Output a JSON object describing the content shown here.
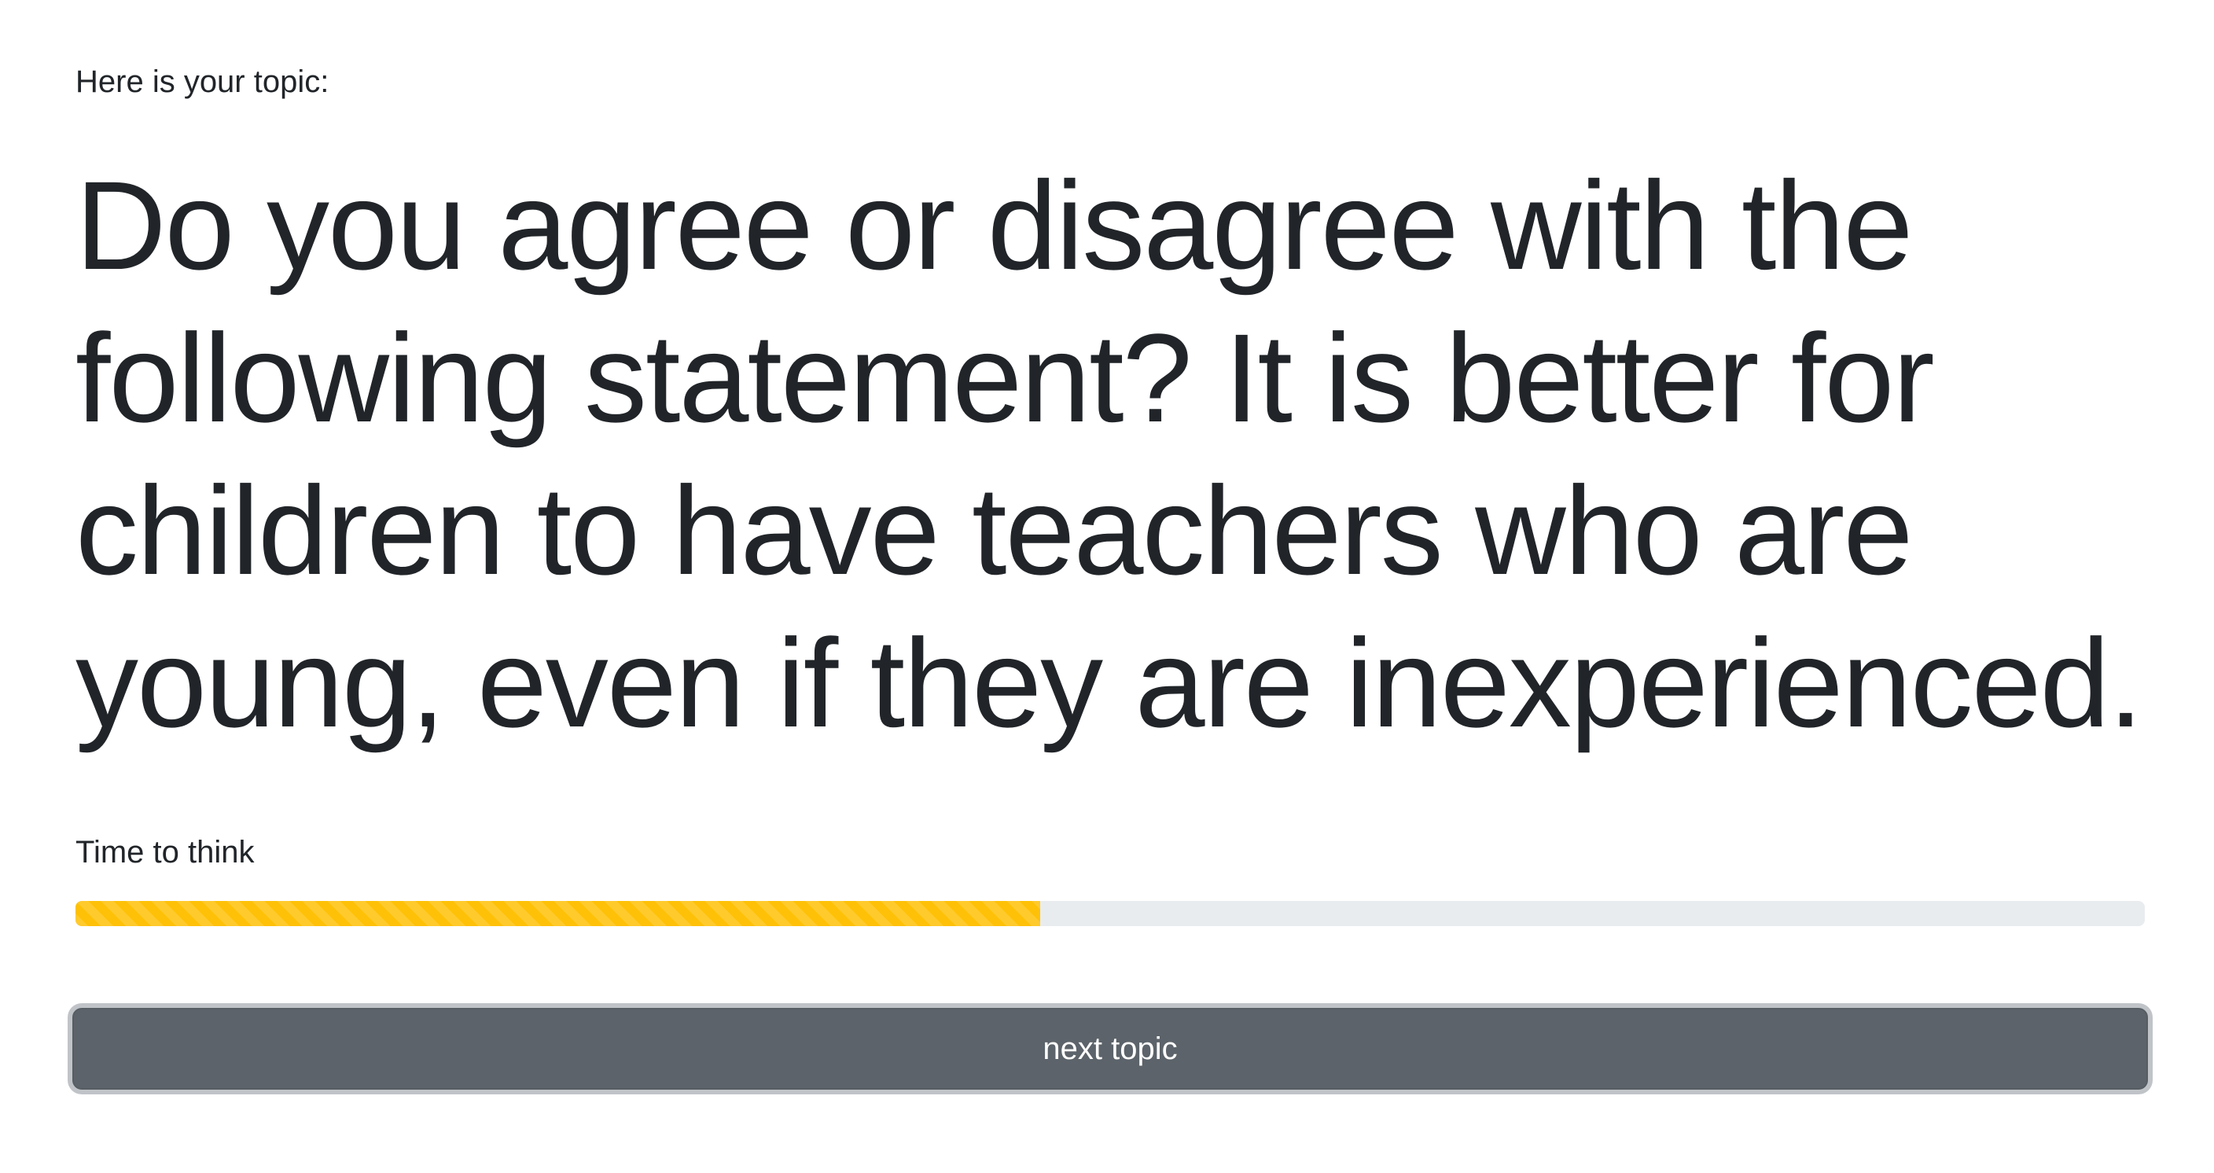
{
  "intro_label": "Here is your topic:",
  "topic": {
    "prompt": "Do you agree or disagree with the following statement?",
    "statement": "It is better for children to have teachers who are young, even if they are inexperienced."
  },
  "timer": {
    "label": "Time to think",
    "progress_percent": 46.6,
    "bar_color": "#ffc107",
    "track_color": "#e9ecef"
  },
  "next_button": {
    "label": "next topic",
    "color": "#5c636a"
  }
}
